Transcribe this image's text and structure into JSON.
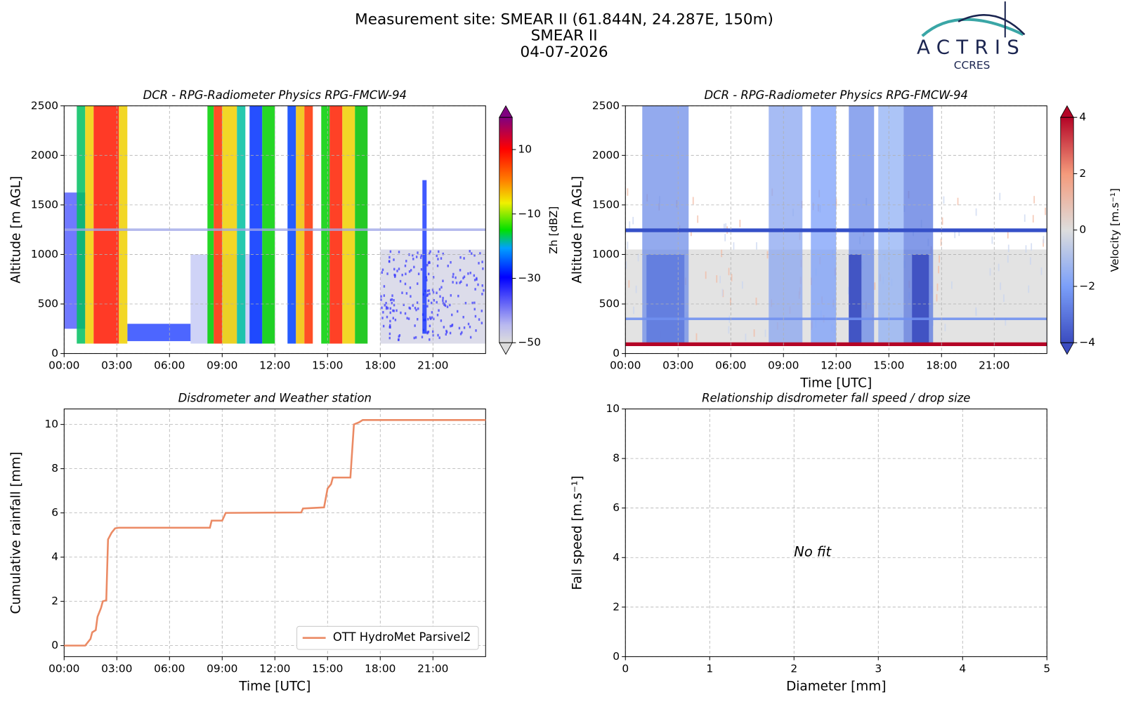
{
  "header": {
    "title": "Measurement site: SMEAR II (61.844N, 24.287E, 150m)",
    "subtitle": "SMEAR II",
    "date": "04-07-2026"
  },
  "logo": {
    "name": "ACTRIS",
    "sub": "CCRES"
  },
  "chart_data": [
    {
      "type": "heatmap",
      "title": "DCR - RPG-Radiometer Physics RPG-FMCW-94",
      "y_label": "Altitude [m AGL]",
      "xlim": [
        0,
        24
      ],
      "xticks": [
        {
          "value": 0,
          "label": "00:00"
        },
        {
          "value": 3,
          "label": "03:00"
        },
        {
          "value": 6,
          "label": "06:00"
        },
        {
          "value": 9,
          "label": "09:00"
        },
        {
          "value": 12,
          "label": "12:00"
        },
        {
          "value": 15,
          "label": "15:00"
        },
        {
          "value": 18,
          "label": "18:00"
        },
        {
          "value": 21,
          "label": "21:00"
        }
      ],
      "ylim": [
        0,
        2500
      ],
      "yticks": [
        0,
        500,
        1000,
        1500,
        2000,
        2500
      ],
      "grid": true,
      "colorbar": {
        "label": "Zh [dBZ]",
        "lim": [
          -50,
          20
        ],
        "ticks": [
          10,
          {
            "value": -10,
            "label": "−10"
          },
          {
            "value": -30,
            "label": "−30"
          },
          {
            "value": -50,
            "label": "−50"
          }
        ],
        "colormap": "zh"
      }
    },
    {
      "type": "heatmap",
      "title": "DCR - RPG-Radiometer Physics RPG-FMCW-94",
      "y_label": "Altitude [m AGL]",
      "x_label": "Time [UTC]",
      "xlim": [
        0,
        24
      ],
      "xticks": [
        {
          "value": 0,
          "label": "00:00"
        },
        {
          "value": 3,
          "label": "03:00"
        },
        {
          "value": 6,
          "label": "06:00"
        },
        {
          "value": 9,
          "label": "09:00"
        },
        {
          "value": 12,
          "label": "12:00"
        },
        {
          "value": 15,
          "label": "15:00"
        },
        {
          "value": 18,
          "label": "18:00"
        },
        {
          "value": 21,
          "label": "21:00"
        }
      ],
      "ylim": [
        0,
        2500
      ],
      "yticks": [
        0,
        500,
        1000,
        1500,
        2000,
        2500
      ],
      "grid": true,
      "colorbar": {
        "label": "Velocity [m.s⁻¹]",
        "lim": [
          -4,
          4
        ],
        "ticks": [
          4,
          2,
          0,
          {
            "value": -2,
            "label": "−2"
          },
          {
            "value": -4,
            "label": "−4"
          }
        ],
        "colormap": "vel"
      }
    },
    {
      "type": "line",
      "title": "Disdrometer and Weather station",
      "y_label": "Cumulative rainfall [mm]",
      "x_label": "Time [UTC]",
      "xlim": [
        0,
        24
      ],
      "xticks": [
        {
          "value": 0,
          "label": "00:00"
        },
        {
          "value": 3,
          "label": "03:00"
        },
        {
          "value": 6,
          "label": "06:00"
        },
        {
          "value": 9,
          "label": "09:00"
        },
        {
          "value": 12,
          "label": "12:00"
        },
        {
          "value": 15,
          "label": "15:00"
        },
        {
          "value": 18,
          "label": "18:00"
        },
        {
          "value": 21,
          "label": "21:00"
        }
      ],
      "ylim": [
        -0.5,
        10.7
      ],
      "yticks": [
        0,
        2,
        4,
        6,
        8,
        10
      ],
      "grid": true,
      "legend": "lower right",
      "x": [
        0,
        1.2,
        1.4,
        1.5,
        1.6,
        1.8,
        1.9,
        2.1,
        2.2,
        2.4,
        2.5,
        2.7,
        2.9,
        3.1,
        8.3,
        8.4,
        9.0,
        9.2,
        13.5,
        13.6,
        14.1,
        14.8,
        15.0,
        15.2,
        15.3,
        16.3,
        16.5,
        16.8,
        17.0,
        24
      ],
      "series": [
        {
          "name": "OTT HydroMet Parsivel2",
          "color": "#eb8a64",
          "values": [
            0,
            0,
            0.2,
            0.3,
            0.6,
            0.7,
            1.3,
            1.7,
            2.0,
            2.05,
            4.8,
            5.1,
            5.3,
            5.33,
            5.33,
            5.65,
            5.65,
            6.0,
            6.02,
            6.2,
            6.22,
            6.25,
            7.1,
            7.3,
            7.6,
            7.6,
            10.0,
            10.1,
            10.2,
            10.2
          ]
        }
      ]
    },
    {
      "type": "scatter",
      "title": "Relationship disdrometer fall speed / drop size",
      "y_label": "Fall speed [m.s⁻¹]",
      "x_label": "Diameter [mm]",
      "xlim": [
        0,
        5
      ],
      "xticks": [
        0,
        1,
        2,
        3,
        4,
        5
      ],
      "ylim": [
        0,
        10
      ],
      "yticks": [
        0,
        2,
        4,
        6,
        8,
        10
      ],
      "grid": true,
      "annotation": "No fit"
    }
  ]
}
